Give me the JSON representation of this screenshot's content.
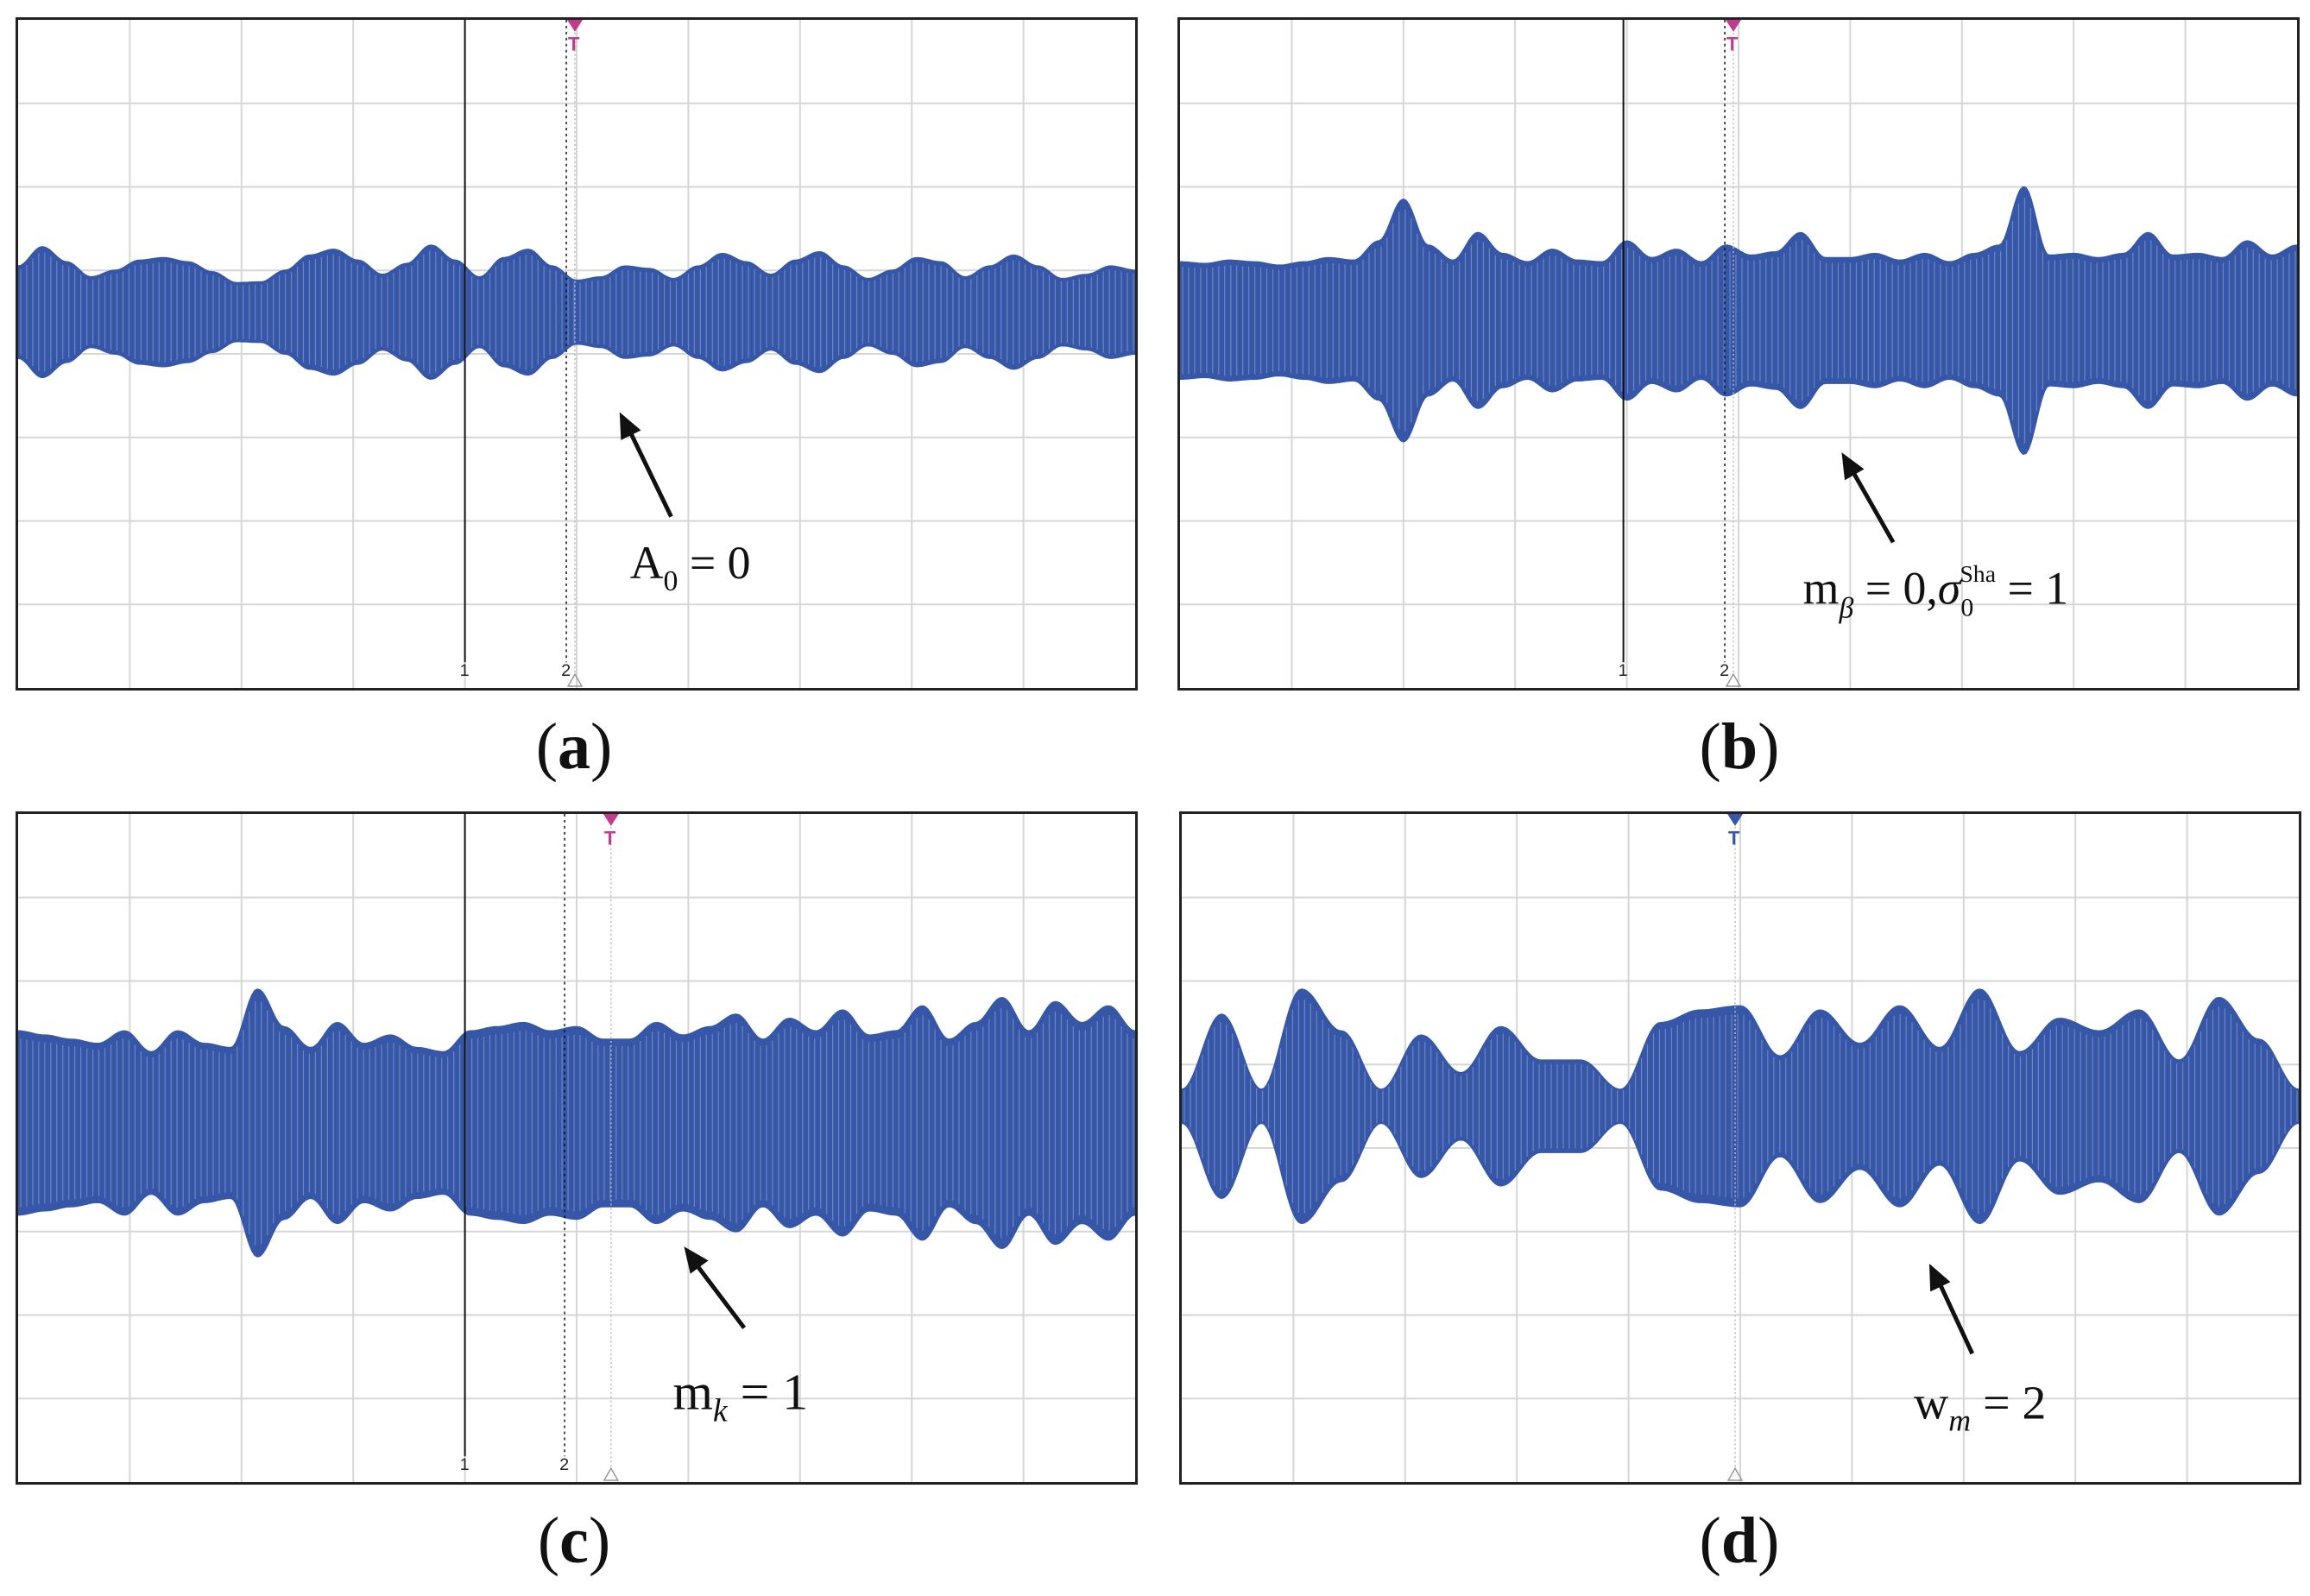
{
  "figure": {
    "colors": {
      "signal": "#3656a8",
      "grid": "#d6d6d6",
      "frame": "#222222",
      "marker_pink": "#c03a8e",
      "marker_blue": "#3656a8",
      "cursor": "#111111"
    },
    "marker_labels": {
      "trigger": "T",
      "cursor1": "1",
      "cursor2": "2"
    }
  },
  "panels": [
    {
      "id": "a",
      "caption": "(a)",
      "caption_letter": "a",
      "annotation": {
        "main": "A",
        "sub": "0",
        "rest": " = 0"
      }
    },
    {
      "id": "b",
      "caption": "(b)",
      "caption_letter": "b",
      "annotation": {
        "main": "m",
        "sub": "β",
        "mid": " = 0,",
        "sigma": "σ",
        "sigma_sub": "0",
        "sigma_sup": "Sha",
        "rest": " = 1"
      }
    },
    {
      "id": "c",
      "caption": "(c)",
      "caption_letter": "c",
      "annotation": {
        "main": "m",
        "sub": "k",
        "rest": " = 1"
      }
    },
    {
      "id": "d",
      "caption": "(d)",
      "caption_letter": "d",
      "annotation": {
        "main": "w",
        "sub": "m",
        "rest": " = 2"
      }
    }
  ],
  "chart_data": [
    {
      "type": "area",
      "panel": "a",
      "signal": "amplitude-modulated oscillation (envelope, divisions)",
      "envelope": [
        0.55,
        0.78,
        0.6,
        0.42,
        0.5,
        0.62,
        0.65,
        0.6,
        0.48,
        0.35,
        0.36,
        0.5,
        0.68,
        0.75,
        0.62,
        0.45,
        0.58,
        0.8,
        0.62,
        0.42,
        0.65,
        0.75,
        0.55,
        0.38,
        0.42,
        0.55,
        0.52,
        0.4,
        0.55,
        0.7,
        0.6,
        0.45,
        0.62,
        0.72,
        0.55,
        0.4,
        0.5,
        0.65,
        0.6,
        0.42,
        0.55,
        0.68,
        0.55,
        0.4,
        0.45,
        0.55,
        0.5
      ],
      "center_div": 3.5,
      "divisions": [
        10,
        8
      ]
    },
    {
      "type": "area",
      "panel": "b",
      "signal": "amplitude-modulated oscillation (envelope, divisions)",
      "envelope": [
        0.7,
        0.68,
        0.72,
        0.7,
        0.66,
        0.7,
        0.75,
        0.72,
        0.95,
        1.45,
        0.9,
        0.72,
        1.05,
        0.8,
        0.7,
        0.85,
        0.72,
        0.7,
        0.95,
        0.75,
        0.85,
        0.7,
        0.9,
        0.78,
        0.82,
        1.05,
        0.75,
        0.75,
        0.8,
        0.72,
        0.8,
        0.7,
        0.8,
        0.9,
        1.6,
        0.78,
        0.8,
        0.75,
        0.8,
        1.05,
        0.78,
        0.8,
        0.75,
        0.95,
        0.78,
        0.9
      ],
      "center_div": 3.6,
      "divisions": [
        10,
        8
      ]
    },
    {
      "type": "area",
      "panel": "c",
      "signal": "amplitude-modulated oscillation (envelope, divisions)",
      "envelope": [
        1.1,
        1.05,
        1.0,
        0.95,
        1.1,
        0.85,
        1.1,
        0.95,
        0.9,
        1.6,
        1.15,
        0.9,
        1.2,
        0.95,
        1.05,
        0.9,
        0.85,
        1.1,
        1.15,
        1.2,
        1.1,
        1.15,
        1.0,
        1.0,
        1.2,
        1.05,
        1.15,
        1.3,
        1.0,
        1.25,
        1.1,
        1.35,
        1.05,
        1.1,
        1.4,
        1.0,
        1.2,
        1.5,
        1.1,
        1.45,
        1.2,
        1.4,
        1.1
      ],
      "center_div": 3.7,
      "divisions": [
        10,
        8
      ]
    },
    {
      "type": "area",
      "panel": "d",
      "signal": "amplitude-modulated oscillation (envelope, divisions)",
      "envelope": [
        0.2,
        1.1,
        0.2,
        1.4,
        0.9,
        0.2,
        0.85,
        0.4,
        0.95,
        0.55,
        0.55,
        0.2,
        1.0,
        1.15,
        1.2,
        0.6,
        1.15,
        0.75,
        1.2,
        0.7,
        1.4,
        0.65,
        1.05,
        0.9,
        1.15,
        0.55,
        1.3,
        0.8,
        0.2
      ],
      "center_div": 3.5,
      "divisions": [
        10,
        8
      ]
    }
  ]
}
